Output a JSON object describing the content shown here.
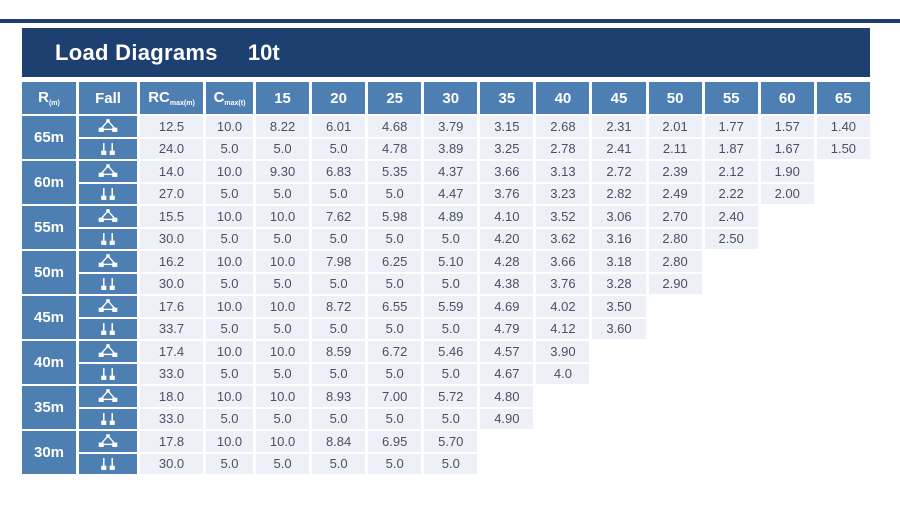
{
  "title": {
    "main": "Load Diagrams",
    "capacity": "10t"
  },
  "colors": {
    "navy": "#1d4070",
    "header_blue": "#4d7fb3",
    "cell_bg": "#edf0f6",
    "cell_text": "#4a5060"
  },
  "table": {
    "headers": {
      "r_label": "R",
      "r_sub": "(m)",
      "fall_label": "Fall",
      "rc_label": "RC",
      "rc_sub": "max(m)",
      "c_label": "C",
      "c_sub": "max(t)",
      "radius_columns": [
        "15",
        "20",
        "25",
        "30",
        "35",
        "40",
        "45",
        "50",
        "55",
        "60",
        "65"
      ]
    },
    "fall_icon_names": {
      "4-fall": "four-fall-icon",
      "2-fall": "two-fall-icon"
    },
    "row_groups": [
      {
        "radius": "65m",
        "rows": [
          {
            "fall": "4-fall",
            "rc": "12.5",
            "c": "10.0",
            "values": [
              "8.22",
              "6.01",
              "4.68",
              "3.79",
              "3.15",
              "2.68",
              "2.31",
              "2.01",
              "1.77",
              "1.57",
              "1.40"
            ]
          },
          {
            "fall": "2-fall",
            "rc": "24.0",
            "c": "5.0",
            "values": [
              "5.0",
              "5.0",
              "4.78",
              "3.89",
              "3.25",
              "2.78",
              "2.41",
              "2.11",
              "1.87",
              "1.67",
              "1.50"
            ]
          }
        ]
      },
      {
        "radius": "60m",
        "rows": [
          {
            "fall": "4-fall",
            "rc": "14.0",
            "c": "10.0",
            "values": [
              "9.30",
              "6.83",
              "5.35",
              "4.37",
              "3.66",
              "3.13",
              "2.72",
              "2.39",
              "2.12",
              "1.90",
              ""
            ]
          },
          {
            "fall": "2-fall",
            "rc": "27.0",
            "c": "5.0",
            "values": [
              "5.0",
              "5.0",
              "5.0",
              "4.47",
              "3.76",
              "3.23",
              "2.82",
              "2.49",
              "2.22",
              "2.00",
              ""
            ]
          }
        ]
      },
      {
        "radius": "55m",
        "rows": [
          {
            "fall": "4-fall",
            "rc": "15.5",
            "c": "10.0",
            "values": [
              "10.0",
              "7.62",
              "5.98",
              "4.89",
              "4.10",
              "3.52",
              "3.06",
              "2.70",
              "2.40",
              "",
              ""
            ]
          },
          {
            "fall": "2-fall",
            "rc": "30.0",
            "c": "5.0",
            "values": [
              "5.0",
              "5.0",
              "5.0",
              "5.0",
              "4.20",
              "3.62",
              "3.16",
              "2.80",
              "2.50",
              "",
              ""
            ]
          }
        ]
      },
      {
        "radius": "50m",
        "rows": [
          {
            "fall": "4-fall",
            "rc": "16.2",
            "c": "10.0",
            "values": [
              "10.0",
              "7.98",
              "6.25",
              "5.10",
              "4.28",
              "3.66",
              "3.18",
              "2.80",
              "",
              "",
              ""
            ]
          },
          {
            "fall": "2-fall",
            "rc": "30.0",
            "c": "5.0",
            "values": [
              "5.0",
              "5.0",
              "5.0",
              "5.0",
              "4.38",
              "3.76",
              "3.28",
              "2.90",
              "",
              "",
              ""
            ]
          }
        ]
      },
      {
        "radius": "45m",
        "rows": [
          {
            "fall": "4-fall",
            "rc": "17.6",
            "c": "10.0",
            "values": [
              "10.0",
              "8.72",
              "6.55",
              "5.59",
              "4.69",
              "4.02",
              "3.50",
              "",
              "",
              "",
              ""
            ]
          },
          {
            "fall": "2-fall",
            "rc": "33.7",
            "c": "5.0",
            "values": [
              "5.0",
              "5.0",
              "5.0",
              "5.0",
              "4.79",
              "4.12",
              "3.60",
              "",
              "",
              "",
              ""
            ]
          }
        ]
      },
      {
        "radius": "40m",
        "rows": [
          {
            "fall": "4-fall",
            "rc": "17.4",
            "c": "10.0",
            "values": [
              "10.0",
              "8.59",
              "6.72",
              "5.46",
              "4.57",
              "3.90",
              "",
              "",
              "",
              "",
              ""
            ]
          },
          {
            "fall": "2-fall",
            "rc": "33.0",
            "c": "5.0",
            "values": [
              "5.0",
              "5.0",
              "5.0",
              "5.0",
              "4.67",
              "4.0",
              "",
              "",
              "",
              "",
              ""
            ]
          }
        ]
      },
      {
        "radius": "35m",
        "rows": [
          {
            "fall": "4-fall",
            "rc": "18.0",
            "c": "10.0",
            "values": [
              "10.0",
              "8.93",
              "7.00",
              "5.72",
              "4.80",
              "",
              "",
              "",
              "",
              "",
              ""
            ]
          },
          {
            "fall": "2-fall",
            "rc": "33.0",
            "c": "5.0",
            "values": [
              "5.0",
              "5.0",
              "5.0",
              "5.0",
              "4.90",
              "",
              "",
              "",
              "",
              "",
              ""
            ]
          }
        ]
      },
      {
        "radius": "30m",
        "rows": [
          {
            "fall": "4-fall",
            "rc": "17.8",
            "c": "10.0",
            "values": [
              "10.0",
              "8.84",
              "6.95",
              "5.70",
              "",
              "",
              "",
              "",
              "",
              "",
              ""
            ]
          },
          {
            "fall": "2-fall",
            "rc": "30.0",
            "c": "5.0",
            "values": [
              "5.0",
              "5.0",
              "5.0",
              "5.0",
              "",
              "",
              "",
              "",
              "",
              "",
              ""
            ]
          }
        ]
      }
    ]
  }
}
